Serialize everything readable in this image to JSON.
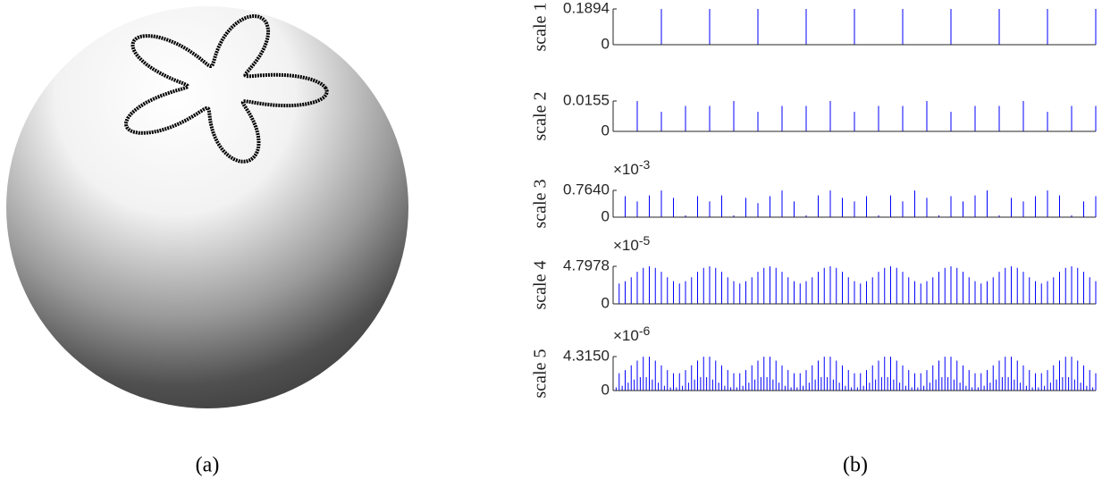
{
  "figure": {
    "caption_a": "(a)",
    "caption_b": "(b)"
  },
  "chart_data": [
    {
      "type": "stem",
      "ylabel": "scale 1",
      "color": "#0000ff",
      "ylim": [
        0,
        0.1894
      ],
      "yticks": [
        0,
        0.1894
      ],
      "values": [
        0.1894,
        0.1894,
        0.1894,
        0.1894,
        0.1894,
        0.1894,
        0.1894,
        0.1894,
        0.1894,
        0.1894
      ]
    },
    {
      "type": "stem",
      "ylabel": "scale 2",
      "color": "#0000ff",
      "ylim": [
        0,
        0.0155
      ],
      "yticks": [
        0,
        0.0155
      ],
      "values": [
        0.0155,
        0.01,
        0.013,
        0.013,
        0.0155,
        0.01,
        0.013,
        0.013,
        0.0155,
        0.01,
        0.013,
        0.013,
        0.0155,
        0.01,
        0.013,
        0.013,
        0.0155,
        0.01,
        0.013,
        0.013
      ]
    },
    {
      "type": "stem",
      "ylabel": "scale 3",
      "color": "#0000ff",
      "multiplier": {
        "base": "×10",
        "exponent": "-3"
      },
      "ylim": [
        0,
        0.764
      ],
      "yticks": [
        0,
        {
          "value": 0.764,
          "label": "0.7640"
        }
      ],
      "values": [
        0.6,
        0.45,
        0.62,
        0.76,
        0.55,
        0.05,
        0.6,
        0.45,
        0.62,
        0.05,
        0.55,
        0.4,
        0.6,
        0.76,
        0.45,
        0.05,
        0.62,
        0.76,
        0.55,
        0.45,
        0.6,
        0.05,
        0.62,
        0.45,
        0.76,
        0.55,
        0.05,
        0.6,
        0.45,
        0.62,
        0.76,
        0.05,
        0.55,
        0.45,
        0.6,
        0.76,
        0.62,
        0.05,
        0.45,
        0.6
      ]
    },
    {
      "type": "stem",
      "ylabel": "scale 4",
      "color": "#0000ff",
      "multiplier": {
        "base": "×10",
        "exponent": "-5"
      },
      "ylim": [
        0,
        4.7978
      ],
      "yticks": [
        0,
        4.7978
      ],
      "values": [
        2.6,
        2.9,
        3.4,
        4.1,
        4.6,
        4.8,
        4.6,
        4.1,
        3.4,
        2.9,
        2.6,
        2.9,
        3.4,
        4.1,
        4.6,
        4.8,
        4.6,
        4.1,
        3.4,
        2.9,
        2.6,
        2.9,
        3.4,
        4.1,
        4.6,
        4.8,
        4.6,
        4.1,
        3.4,
        2.9,
        2.6,
        2.9,
        3.4,
        4.1,
        4.6,
        4.8,
        4.6,
        4.1,
        3.4,
        2.9,
        2.6,
        2.9,
        3.4,
        4.1,
        4.6,
        4.8,
        4.6,
        4.1,
        3.4,
        2.9,
        2.6,
        2.9,
        3.4,
        4.1,
        4.6,
        4.8,
        4.6,
        4.1,
        3.4,
        2.9,
        2.6,
        2.9,
        3.4,
        4.1,
        4.6,
        4.8,
        4.6,
        4.1,
        3.4,
        2.9,
        2.6,
        2.9,
        3.4,
        4.1,
        4.6,
        4.8,
        4.6,
        4.1,
        3.4,
        2.9
      ]
    },
    {
      "type": "stem",
      "ylabel": "scale 5",
      "color": "#0000ff",
      "multiplier": {
        "base": "×10",
        "exponent": "-6"
      },
      "ylim": [
        0,
        4.315
      ],
      "yticks": [
        0,
        {
          "value": 4.315,
          "label": "4.3150"
        }
      ],
      "series": [
        {
          "values": [
            2.2,
            2.6,
            3.2,
            3.8,
            4.3,
            4.3,
            3.8,
            3.2,
            2.6,
            2.2,
            2.2,
            2.6,
            3.2,
            3.8,
            4.3,
            4.3,
            3.8,
            3.2,
            2.6,
            2.2,
            2.2,
            2.6,
            3.2,
            3.8,
            4.3,
            4.3,
            3.8,
            3.2,
            2.6,
            2.2,
            2.2,
            2.6,
            3.2,
            3.8,
            4.3,
            4.3,
            3.8,
            3.2,
            2.6,
            2.2,
            2.2,
            2.6,
            3.2,
            3.8,
            4.3,
            4.3,
            3.8,
            3.2,
            2.6,
            2.2,
            2.2,
            2.6,
            3.2,
            3.8,
            4.3,
            4.3,
            3.8,
            3.2,
            2.6,
            2.2,
            2.2,
            2.6,
            3.2,
            3.8,
            4.3,
            4.3,
            3.8,
            3.2,
            2.6,
            2.2,
            2.2,
            2.6,
            3.2,
            3.8,
            4.3,
            4.3,
            3.8,
            3.2,
            2.6,
            2.2
          ]
        },
        {
          "values": [
            0.4,
            0.6,
            1.0,
            1.4,
            1.7,
            1.7,
            1.4,
            1.0,
            0.6,
            0.4,
            0.4,
            0.6,
            1.0,
            1.4,
            1.7,
            1.7,
            1.4,
            1.0,
            0.6,
            0.4,
            0.4,
            0.6,
            1.0,
            1.4,
            1.7,
            1.7,
            1.4,
            1.0,
            0.6,
            0.4,
            0.4,
            0.6,
            1.0,
            1.4,
            1.7,
            1.7,
            1.4,
            1.0,
            0.6,
            0.4,
            0.4,
            0.6,
            1.0,
            1.4,
            1.7,
            1.7,
            1.4,
            1.0,
            0.6,
            0.4,
            0.4,
            0.6,
            1.0,
            1.4,
            1.7,
            1.7,
            1.4,
            1.0,
            0.6,
            0.4,
            0.4,
            0.6,
            1.0,
            1.4,
            1.7,
            1.7,
            1.4,
            1.0,
            0.6,
            0.4,
            0.4,
            0.6,
            1.0,
            1.4,
            1.7,
            1.7,
            1.4,
            1.0,
            0.6,
            0.4
          ]
        }
      ]
    }
  ]
}
